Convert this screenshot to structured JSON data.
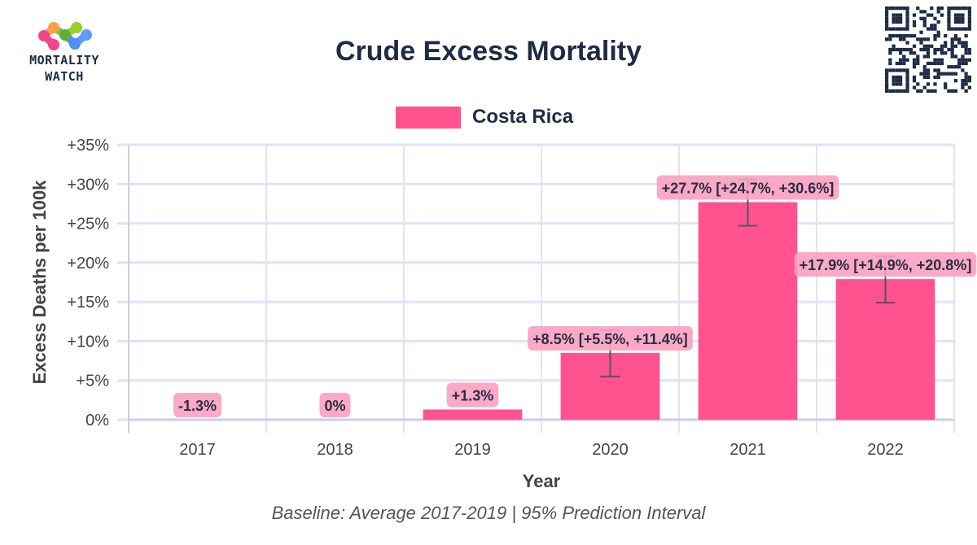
{
  "header": {
    "logo_line1": "MORTALITY",
    "logo_line2": "WATCH",
    "title": "Crude Excess Mortality"
  },
  "legend": {
    "label": "Costa Rica",
    "color": "#ff528f"
  },
  "subtitle": "Baseline: Average 2017-2019 | 95% Prediction Interval",
  "colors": {
    "bar": "#ff528f",
    "label_bg": "#f9a0c0",
    "grid": "#dfe3f7",
    "errorbar": "#555566",
    "text_dark": "#1f2a44"
  },
  "chart_data": {
    "type": "bar",
    "title": "Crude Excess Mortality",
    "xlabel": "Year",
    "ylabel": "Excess Deaths per 100k",
    "categories": [
      "2017",
      "2018",
      "2019",
      "2020",
      "2021",
      "2022"
    ],
    "series": [
      {
        "name": "Costa Rica",
        "values": [
          -1.3,
          0,
          1.3,
          8.5,
          27.7,
          17.9
        ],
        "lower": [
          null,
          null,
          null,
          5.5,
          24.7,
          14.9
        ],
        "upper": [
          null,
          null,
          null,
          11.4,
          30.6,
          20.8
        ],
        "labels": [
          "-1.3%",
          "0%",
          "+1.3%",
          "+8.5% [+5.5%, +11.4%]",
          "+27.7% [+24.7%, +30.6%]",
          "+17.9% [+14.9%, +20.8%]"
        ]
      }
    ],
    "ylim": [
      0,
      35
    ],
    "yticks": [
      0,
      5,
      10,
      15,
      20,
      25,
      30,
      35
    ],
    "ytick_labels": [
      "0%",
      "+5%",
      "+10%",
      "+15%",
      "+20%",
      "+25%",
      "+30%",
      "+35%"
    ],
    "grid": true,
    "legend_position": "top-center",
    "note": "Baseline: Average 2017-2019 | 95% Prediction Interval"
  }
}
